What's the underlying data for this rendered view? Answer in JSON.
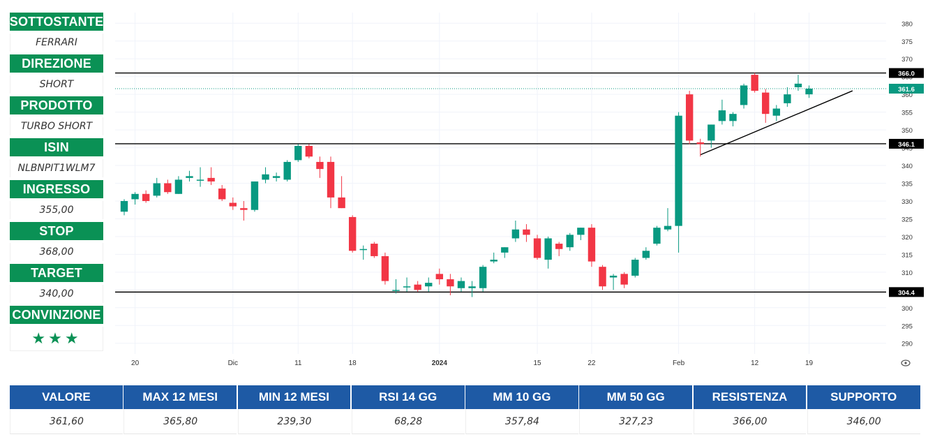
{
  "sidebar": {
    "items": [
      {
        "label": "SOTTOSTANTE",
        "value": "FERRARI"
      },
      {
        "label": "DIREZIONE",
        "value": "SHORT"
      },
      {
        "label": "PRODOTTO",
        "value": "TURBO SHORT"
      },
      {
        "label": "ISIN",
        "value": "NLBNPIT1WLM7"
      },
      {
        "label": "INGRESSO",
        "value": "355,00"
      },
      {
        "label": "STOP",
        "value": "368,00"
      },
      {
        "label": "TARGET",
        "value": "340,00"
      },
      {
        "label": "CONVINZIONE",
        "value": "★★★"
      }
    ]
  },
  "stats": {
    "headers": [
      "VALORE",
      "MAX 12 MESI",
      "MIN 12 MESI",
      "RSI 14 GG",
      "MM 10 GG",
      "MM 50 GG",
      "RESISTENZA",
      "SUPPORTO"
    ],
    "values": [
      "361,60",
      "365,80",
      "239,30",
      "68,28",
      "357,84",
      "327,23",
      "366,00",
      "346,00"
    ]
  },
  "chart_data": {
    "type": "candlestick",
    "ylim": [
      287,
      383
    ],
    "y_ticks": [
      290,
      295,
      300,
      305,
      310,
      315,
      320,
      325,
      330,
      335,
      340,
      345,
      350,
      355,
      360,
      365,
      370,
      375,
      380
    ],
    "x_ticks": [
      {
        "label": "20",
        "index": 1
      },
      {
        "label": "Dic",
        "index": 10
      },
      {
        "label": "11",
        "index": 16
      },
      {
        "label": "18",
        "index": 21
      },
      {
        "label": "2024",
        "index": 29
      },
      {
        "label": "15",
        "index": 38
      },
      {
        "label": "22",
        "index": 43
      },
      {
        "label": "Feb",
        "index": 51
      },
      {
        "label": "12",
        "index": 58
      },
      {
        "label": "19",
        "index": 63
      }
    ],
    "candles": [
      {
        "o": 327.0,
        "h": 330.5,
        "l": 326.0,
        "c": 330.0
      },
      {
        "o": 330.5,
        "h": 332.5,
        "l": 329.0,
        "c": 332.0
      },
      {
        "o": 332.0,
        "h": 333.0,
        "l": 329.5,
        "c": 330.0
      },
      {
        "o": 331.5,
        "h": 336.5,
        "l": 331.0,
        "c": 335.0
      },
      {
        "o": 335.0,
        "h": 336.0,
        "l": 332.0,
        "c": 332.5
      },
      {
        "o": 332.0,
        "h": 337.0,
        "l": 332.0,
        "c": 336.0
      },
      {
        "o": 336.5,
        "h": 338.5,
        "l": 335.5,
        "c": 337.0
      },
      {
        "o": 336.0,
        "h": 339.5,
        "l": 334.0,
        "c": 336.0
      },
      {
        "o": 336.5,
        "h": 339.5,
        "l": 334.5,
        "c": 335.5
      },
      {
        "o": 333.5,
        "h": 334.5,
        "l": 330.0,
        "c": 330.5
      },
      {
        "o": 329.5,
        "h": 331.0,
        "l": 327.5,
        "c": 328.5
      },
      {
        "o": 328.0,
        "h": 330.0,
        "l": 324.5,
        "c": 327.5
      },
      {
        "o": 327.5,
        "h": 335.5,
        "l": 327.0,
        "c": 335.5
      },
      {
        "o": 336.0,
        "h": 339.5,
        "l": 335.0,
        "c": 337.5
      },
      {
        "o": 336.5,
        "h": 338.0,
        "l": 335.5,
        "c": 337.0
      },
      {
        "o": 336.0,
        "h": 341.5,
        "l": 335.5,
        "c": 341.0
      },
      {
        "o": 341.5,
        "h": 346.0,
        "l": 341.0,
        "c": 345.5
      },
      {
        "o": 345.5,
        "h": 346.0,
        "l": 342.0,
        "c": 342.5
      },
      {
        "o": 341.0,
        "h": 342.5,
        "l": 336.5,
        "c": 339.0
      },
      {
        "o": 341.0,
        "h": 342.5,
        "l": 328.0,
        "c": 331.0
      },
      {
        "o": 331.0,
        "h": 337.0,
        "l": 328.0,
        "c": 328.0
      },
      {
        "o": 325.5,
        "h": 326.0,
        "l": 315.5,
        "c": 316.0
      },
      {
        "o": 316.5,
        "h": 317.5,
        "l": 313.5,
        "c": 316.5
      },
      {
        "o": 318.0,
        "h": 318.5,
        "l": 314.0,
        "c": 314.5
      },
      {
        "o": 314.5,
        "h": 315.5,
        "l": 306.5,
        "c": 307.5
      },
      {
        "o": 305.0,
        "h": 308.0,
        "l": 304.0,
        "c": 305.0
      },
      {
        "o": 306.0,
        "h": 308.5,
        "l": 304.5,
        "c": 306.0
      },
      {
        "o": 306.5,
        "h": 307.5,
        "l": 304.5,
        "c": 305.0
      },
      {
        "o": 306.0,
        "h": 308.5,
        "l": 304.5,
        "c": 307.0
      },
      {
        "o": 309.5,
        "h": 311.0,
        "l": 306.5,
        "c": 308.0
      },
      {
        "o": 308.0,
        "h": 309.5,
        "l": 303.5,
        "c": 306.0
      },
      {
        "o": 305.5,
        "h": 308.5,
        "l": 304.5,
        "c": 307.5
      },
      {
        "o": 305.5,
        "h": 307.5,
        "l": 303.0,
        "c": 306.0
      },
      {
        "o": 305.5,
        "h": 312.0,
        "l": 304.5,
        "c": 311.5
      },
      {
        "o": 313.0,
        "h": 315.5,
        "l": 312.5,
        "c": 313.5
      },
      {
        "o": 315.5,
        "h": 317.0,
        "l": 314.0,
        "c": 317.0
      },
      {
        "o": 319.5,
        "h": 324.5,
        "l": 318.5,
        "c": 322.0
      },
      {
        "o": 322.0,
        "h": 323.5,
        "l": 318.5,
        "c": 320.5
      },
      {
        "o": 319.5,
        "h": 320.5,
        "l": 313.5,
        "c": 314.0
      },
      {
        "o": 313.5,
        "h": 320.0,
        "l": 311.0,
        "c": 319.5
      },
      {
        "o": 318.0,
        "h": 318.5,
        "l": 314.5,
        "c": 316.5
      },
      {
        "o": 317.0,
        "h": 321.0,
        "l": 316.0,
        "c": 320.5
      },
      {
        "o": 320.5,
        "h": 322.5,
        "l": 319.0,
        "c": 322.5
      },
      {
        "o": 322.5,
        "h": 323.5,
        "l": 311.5,
        "c": 313.0
      },
      {
        "o": 311.5,
        "h": 312.0,
        "l": 305.0,
        "c": 306.0
      },
      {
        "o": 308.5,
        "h": 309.5,
        "l": 305.0,
        "c": 309.0
      },
      {
        "o": 309.5,
        "h": 310.0,
        "l": 305.5,
        "c": 306.5
      },
      {
        "o": 309.0,
        "h": 314.0,
        "l": 308.5,
        "c": 313.5
      },
      {
        "o": 314.0,
        "h": 317.0,
        "l": 313.5,
        "c": 316.0
      },
      {
        "o": 318.0,
        "h": 323.0,
        "l": 317.5,
        "c": 322.5
      },
      {
        "o": 322.0,
        "h": 328.0,
        "l": 321.5,
        "c": 323.0
      },
      {
        "o": 323.0,
        "h": 355.0,
        "l": 315.5,
        "c": 354.0
      },
      {
        "o": 360.0,
        "h": 361.0,
        "l": 346.0,
        "c": 347.0
      },
      {
        "o": 346.5,
        "h": 347.5,
        "l": 342.5,
        "c": 346.0
      },
      {
        "o": 347.0,
        "h": 351.5,
        "l": 345.0,
        "c": 351.5
      },
      {
        "o": 352.5,
        "h": 358.5,
        "l": 351.5,
        "c": 355.5
      },
      {
        "o": 352.5,
        "h": 355.0,
        "l": 351.0,
        "c": 354.5
      },
      {
        "o": 357.0,
        "h": 363.0,
        "l": 356.0,
        "c": 362.5
      },
      {
        "o": 365.5,
        "h": 366.0,
        "l": 360.5,
        "c": 361.0
      },
      {
        "o": 360.5,
        "h": 361.5,
        "l": 352.0,
        "c": 354.5
      },
      {
        "o": 354.0,
        "h": 357.0,
        "l": 352.5,
        "c": 356.0
      },
      {
        "o": 357.5,
        "h": 362.0,
        "l": 356.5,
        "c": 360.0
      },
      {
        "o": 362.0,
        "h": 365.5,
        "l": 361.0,
        "c": 363.0
      },
      {
        "o": 360.0,
        "h": 362.5,
        "l": 359.0,
        "c": 361.6
      }
    ],
    "horizontal_lines": [
      {
        "y": 366.0,
        "label": "366.0",
        "style": "solid"
      },
      {
        "y": 346.1,
        "label": "346.1",
        "style": "solid"
      },
      {
        "y": 304.4,
        "label": "304.4",
        "style": "solid"
      },
      {
        "y": 361.6,
        "label": "361.6",
        "style": "dotted-last-price"
      }
    ],
    "trendline": {
      "from": {
        "index": 53,
        "y": 343.0
      },
      "to": {
        "index": 67,
        "y": 361.0
      }
    },
    "colors": {
      "up": "#089981",
      "down": "#f23645",
      "last_price": "#089981"
    }
  }
}
